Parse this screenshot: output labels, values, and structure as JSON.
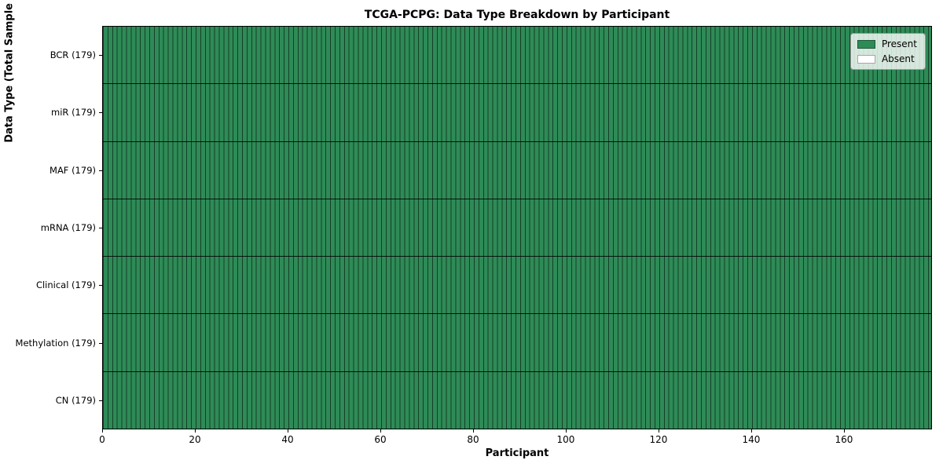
{
  "figure": {
    "title": "TCGA-PCPG: Data Type Breakdown by Participant"
  },
  "axes": {
    "x_label": "Participant",
    "y_label": "Data Type (Total Sample Count)",
    "x_ticks": [
      0,
      20,
      40,
      60,
      80,
      100,
      120,
      140,
      160
    ],
    "x_range": [
      0,
      179
    ]
  },
  "legend": {
    "position": "upper right",
    "entries": [
      {
        "key": "present",
        "label": "Present",
        "color": "#2e8b57"
      },
      {
        "key": "absent",
        "label": "Absent",
        "color": "#ffffff"
      }
    ]
  },
  "chart_data": {
    "type": "heatmap",
    "title": "TCGA-PCPG: Data Type Breakdown by Participant",
    "xlabel": "Participant",
    "ylabel": "Data Type (Total Sample Count)",
    "x_range": [
      0,
      179
    ],
    "n_participants": 179,
    "grid_on": true,
    "legend_position": "upper right",
    "cell_colors": {
      "present": "#2e8b57",
      "absent": "#ffffff"
    },
    "grid_line_color": "rgba(0,0,0,0.55)",
    "row_separator_color": "rgba(0,0,0,0.85)",
    "rows": [
      {
        "label": "BCR (179)",
        "data_type": "BCR",
        "total_samples": 179,
        "present_count": 179,
        "absent_count": 0,
        "all_present": true
      },
      {
        "label": "miR (179)",
        "data_type": "miR",
        "total_samples": 179,
        "present_count": 179,
        "absent_count": 0,
        "all_present": true
      },
      {
        "label": "MAF (179)",
        "data_type": "MAF",
        "total_samples": 179,
        "present_count": 179,
        "absent_count": 0,
        "all_present": true
      },
      {
        "label": "mRNA (179)",
        "data_type": "mRNA",
        "total_samples": 179,
        "present_count": 179,
        "absent_count": 0,
        "all_present": true
      },
      {
        "label": "Clinical (179)",
        "data_type": "Clinical",
        "total_samples": 179,
        "present_count": 179,
        "absent_count": 0,
        "all_present": true
      },
      {
        "label": "Methylation (179)",
        "data_type": "Methylation",
        "total_samples": 179,
        "present_count": 179,
        "absent_count": 0,
        "all_present": true
      },
      {
        "label": "CN (179)",
        "data_type": "CN",
        "total_samples": 179,
        "present_count": 179,
        "absent_count": 0,
        "all_present": true
      }
    ]
  }
}
